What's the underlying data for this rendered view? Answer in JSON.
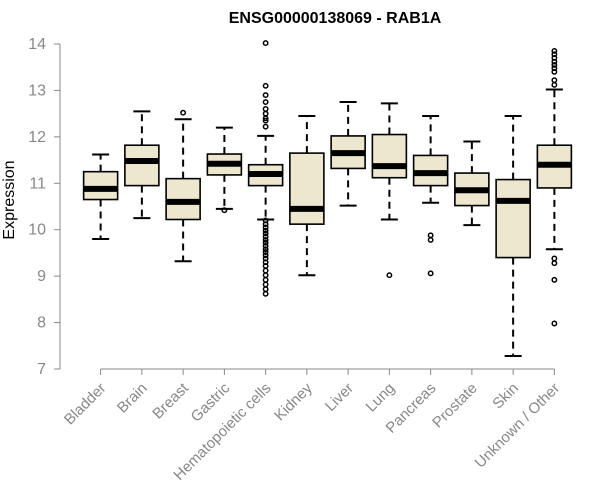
{
  "chart_data": {
    "type": "boxplot",
    "title": "ENSG00000138069 - RAB1A",
    "ylabel": "Expression",
    "xlabel": "",
    "ylim": [
      7,
      14
    ],
    "yticks": [
      7,
      8,
      9,
      10,
      11,
      12,
      13,
      14
    ],
    "grid": false,
    "colors": {
      "box_fill": "#ede7cf",
      "box_stroke": "#000000",
      "axis": "#888888",
      "label": "#888888"
    },
    "categories": [
      "Bladder",
      "Brain",
      "Breast",
      "Gastric",
      "Hematopoietic cells",
      "Kidney",
      "Liver",
      "Lung",
      "Pancreas",
      "Prostate",
      "Skin",
      "Unknown / Other"
    ],
    "boxes": [
      {
        "category": "Bladder",
        "whisker_low": 9.8,
        "q1": 10.65,
        "median": 10.88,
        "q3": 11.25,
        "whisker_high": 11.62,
        "outliers": []
      },
      {
        "category": "Brain",
        "whisker_low": 10.25,
        "q1": 10.95,
        "median": 11.48,
        "q3": 11.82,
        "whisker_high": 12.55,
        "outliers": []
      },
      {
        "category": "Breast",
        "whisker_low": 9.32,
        "q1": 10.22,
        "median": 10.6,
        "q3": 11.1,
        "whisker_high": 12.38,
        "outliers": [
          12.52
        ]
      },
      {
        "category": "Gastric",
        "whisker_low": 10.45,
        "q1": 11.18,
        "median": 11.42,
        "q3": 11.63,
        "whisker_high": 12.2,
        "outliers": [
          10.42
        ]
      },
      {
        "category": "Hematopoietic cells",
        "whisker_low": 10.22,
        "q1": 10.95,
        "median": 11.2,
        "q3": 11.4,
        "whisker_high": 12.02,
        "outliers": [
          14.02,
          13.1,
          12.9,
          12.75,
          12.6,
          12.5,
          12.4,
          12.35,
          12.22,
          10.2,
          10.12,
          10.05,
          9.98,
          9.92,
          9.85,
          9.78,
          9.72,
          9.65,
          9.58,
          9.52,
          9.45,
          9.38,
          9.3,
          9.22,
          9.12,
          9.02,
          8.92,
          8.82,
          8.72,
          8.62
        ]
      },
      {
        "category": "Kidney",
        "whisker_low": 9.02,
        "q1": 10.12,
        "median": 10.45,
        "q3": 11.65,
        "whisker_high": 12.45,
        "outliers": []
      },
      {
        "category": "Liver",
        "whisker_low": 10.52,
        "q1": 11.32,
        "median": 11.65,
        "q3": 12.02,
        "whisker_high": 12.75,
        "outliers": []
      },
      {
        "category": "Lung",
        "whisker_low": 10.22,
        "q1": 11.12,
        "median": 11.37,
        "q3": 12.05,
        "whisker_high": 12.72,
        "outliers": [
          9.02
        ]
      },
      {
        "category": "Pancreas",
        "whisker_low": 10.58,
        "q1": 10.95,
        "median": 11.22,
        "q3": 11.6,
        "whisker_high": 12.45,
        "outliers": [
          9.88,
          9.78,
          9.06
        ]
      },
      {
        "category": "Prostate",
        "whisker_low": 10.1,
        "q1": 10.52,
        "median": 10.85,
        "q3": 11.22,
        "whisker_high": 11.9,
        "outliers": []
      },
      {
        "category": "Skin",
        "whisker_low": 7.28,
        "q1": 9.4,
        "median": 10.62,
        "q3": 11.08,
        "whisker_high": 12.45,
        "outliers": []
      },
      {
        "category": "Unknown / Other",
        "whisker_low": 9.58,
        "q1": 10.9,
        "median": 11.4,
        "q3": 11.82,
        "whisker_high": 13.02,
        "outliers": [
          13.85,
          13.78,
          13.7,
          13.62,
          13.55,
          13.48,
          13.4,
          13.22,
          13.12,
          9.38,
          9.28,
          8.92,
          7.98
        ]
      }
    ]
  }
}
